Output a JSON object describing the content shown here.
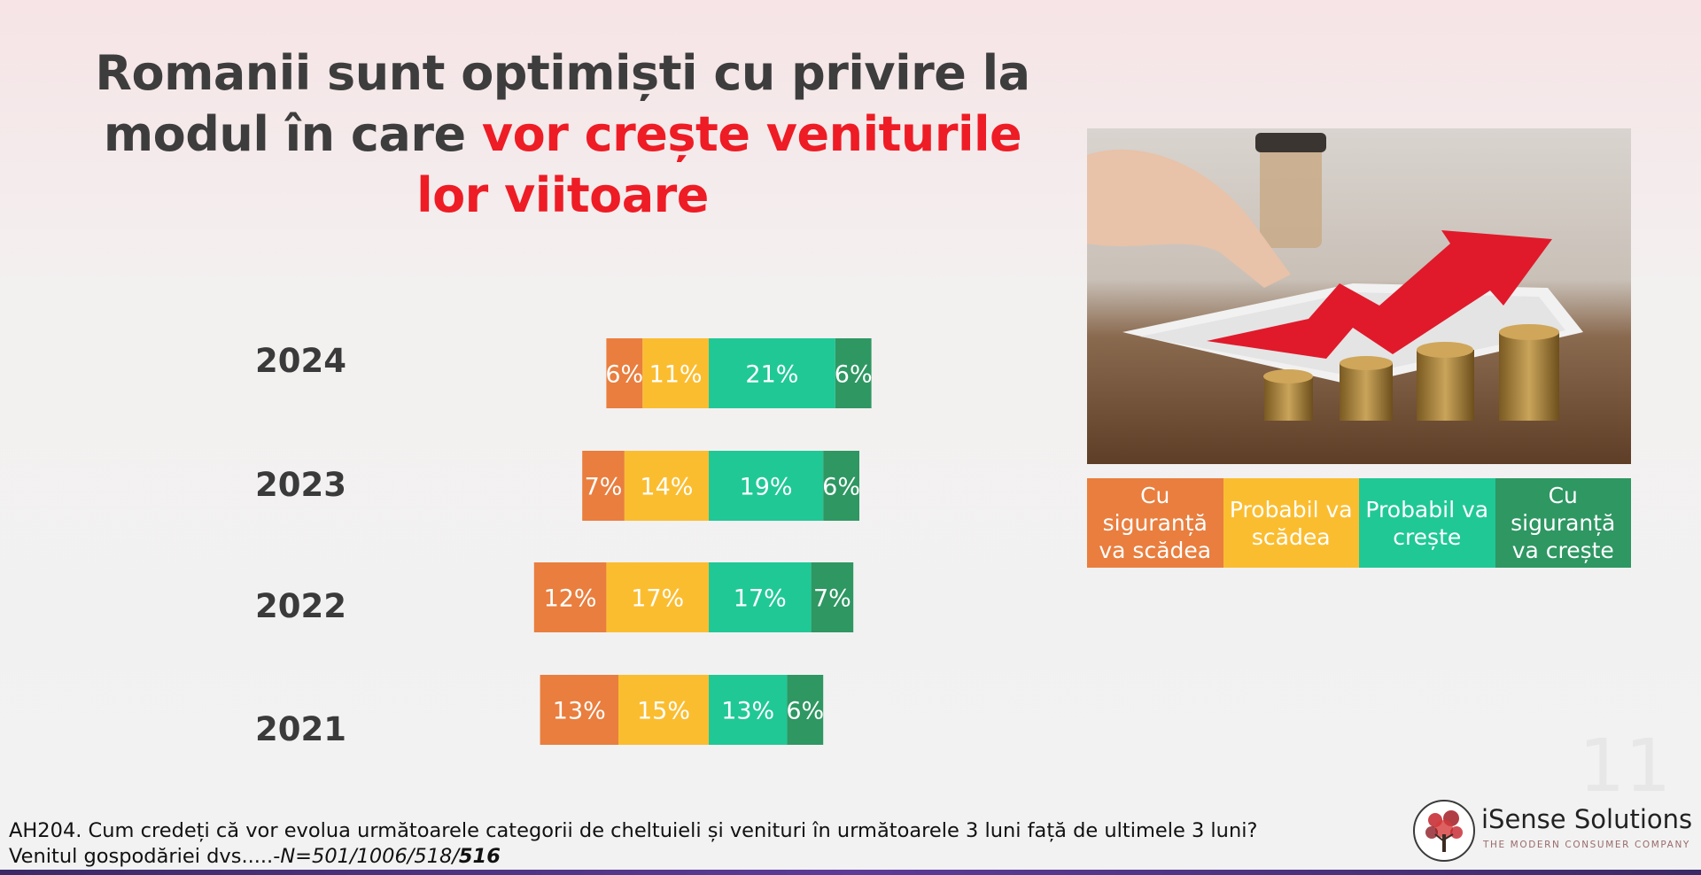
{
  "title": {
    "part1": "Romanii sunt optimiști cu privire la modul în care ",
    "highlight": "vor crește veniturile lor viitoare"
  },
  "chart_data": {
    "type": "bar",
    "stacked": true,
    "categories": [
      "2024",
      "2023",
      "2022",
      "2021"
    ],
    "series": [
      {
        "name": "Cu siguranță va scădea",
        "color": "#e97e3e",
        "values": [
          6,
          7,
          12,
          13
        ]
      },
      {
        "name": "Probabil va scădea",
        "color": "#fbbd30",
        "values": [
          11,
          14,
          17,
          15
        ]
      },
      {
        "name": "Probabil va crește",
        "color": "#20c896",
        "values": [
          21,
          19,
          17,
          13
        ]
      },
      {
        "name": "Cu siguranță va crește",
        "color": "#2e9762",
        "values": [
          6,
          6,
          7,
          6
        ]
      }
    ],
    "value_suffix": "%",
    "legend_position": "right"
  },
  "legend": [
    {
      "label": "Cu siguranță va scădea",
      "color": "#e97e3e"
    },
    {
      "label": "Probabil va scădea",
      "color": "#fbbd30"
    },
    {
      "label": "Probabil va crește",
      "color": "#20c896"
    },
    {
      "label": "Cu siguranță va crește",
      "color": "#2e9762"
    }
  ],
  "page_number": "11",
  "footnote": {
    "line1": "AH204. Cum credeți că vor evolua următoarele categorii de cheltuieli și venituri în următoarele 3 luni față de ultimele 3 luni?",
    "line2_prefix": "Venitul gospodăriei dvs.....-",
    "line2_n": "N=501/1006/518/",
    "line2_n_bold": "516"
  },
  "logo": {
    "name": "iSense Solutions",
    "tagline": "THE MODERN CONSUMER COMPANY"
  }
}
